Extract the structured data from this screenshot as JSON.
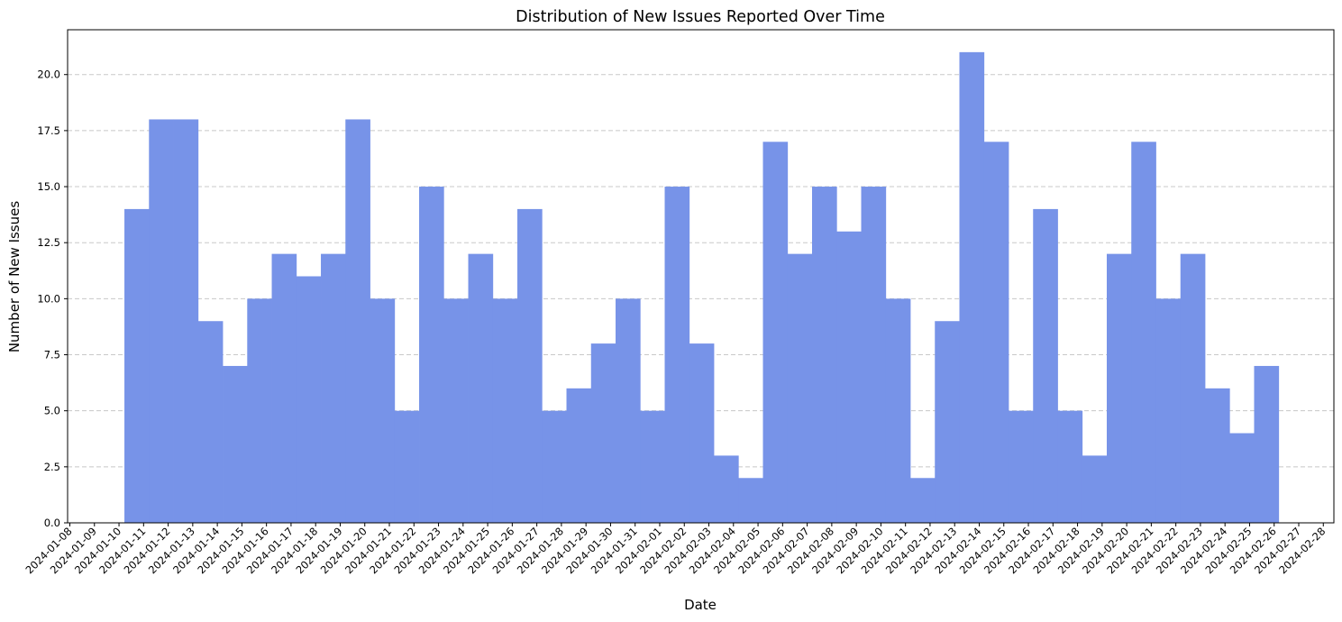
{
  "chart_data": {
    "type": "bar",
    "title": "Distribution of New Issues Reported Over Time",
    "xlabel": "Date",
    "ylabel": "Number of New Issues",
    "ylim": [
      0,
      22
    ],
    "grid": "y-dashed",
    "bar_color": "#7793e8",
    "y_ticks": [
      "0.0",
      "2.5",
      "5.0",
      "7.5",
      "10.0",
      "12.5",
      "15.0",
      "17.5",
      "20.0"
    ],
    "x_ticks": [
      "2024-01-08",
      "2024-01-09",
      "2024-01-10",
      "2024-01-11",
      "2024-01-12",
      "2024-01-13",
      "2024-01-14",
      "2024-01-15",
      "2024-01-16",
      "2024-01-17",
      "2024-01-18",
      "2024-01-19",
      "2024-01-20",
      "2024-01-21",
      "2024-01-22",
      "2024-01-23",
      "2024-01-24",
      "2024-01-25",
      "2024-01-26",
      "2024-01-27",
      "2024-01-28",
      "2024-01-29",
      "2024-01-30",
      "2024-01-31",
      "2024-02-01",
      "2024-02-02",
      "2024-02-03",
      "2024-02-04",
      "2024-02-05",
      "2024-02-06",
      "2024-02-07",
      "2024-02-08",
      "2024-02-09",
      "2024-02-10",
      "2024-02-11",
      "2024-02-12",
      "2024-02-13",
      "2024-02-14",
      "2024-02-15",
      "2024-02-16",
      "2024-02-17",
      "2024-02-18",
      "2024-02-19",
      "2024-02-20",
      "2024-02-21",
      "2024-02-22",
      "2024-02-23",
      "2024-02-24",
      "2024-02-25",
      "2024-02-26",
      "2024-02-27",
      "2024-02-28"
    ],
    "bins_start": "2024-01-10",
    "bins_end": "2024-02-26",
    "values": [
      14,
      18,
      18,
      9,
      7,
      10,
      12,
      11,
      12,
      18,
      10,
      5,
      15,
      10,
      12,
      10,
      14,
      5,
      6,
      8,
      10,
      5,
      15,
      8,
      3,
      2,
      17,
      12,
      15,
      13,
      15,
      10,
      2,
      9,
      21,
      17,
      5,
      14,
      5,
      3,
      12,
      17,
      10,
      12,
      6,
      4,
      7
    ]
  }
}
